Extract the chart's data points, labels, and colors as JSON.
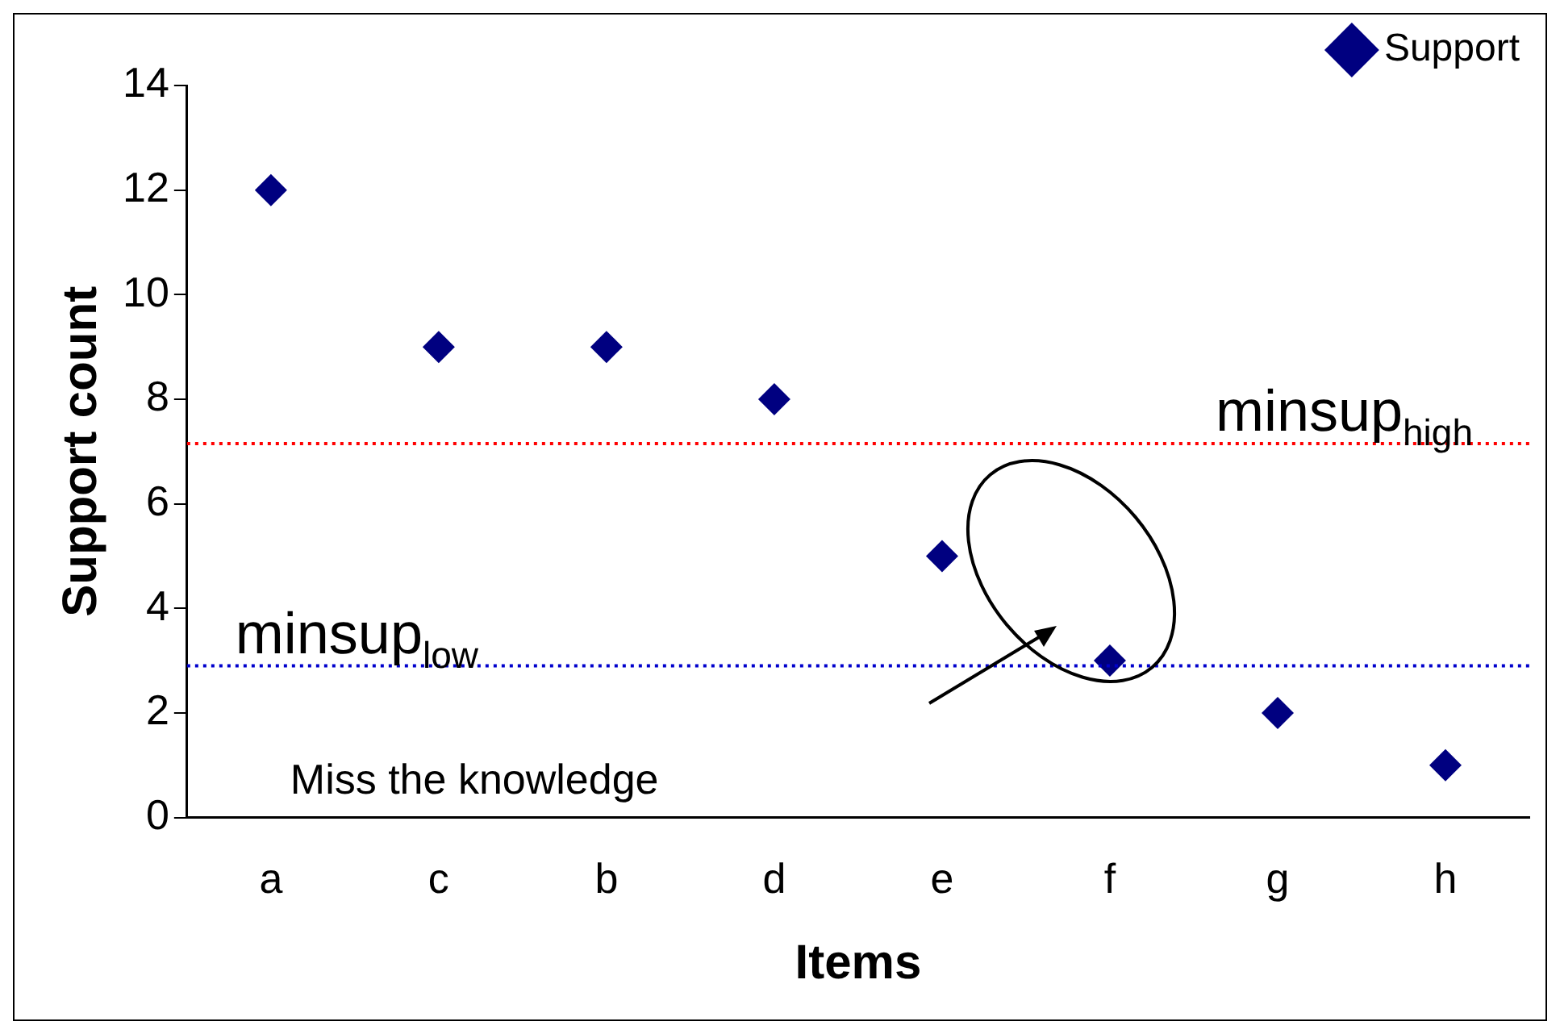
{
  "chart_data": {
    "type": "scatter",
    "xlabel": "Items",
    "ylabel": "Support count",
    "categories": [
      "a",
      "c",
      "b",
      "d",
      "e",
      "f",
      "g",
      "h"
    ],
    "series": [
      {
        "name": "Support",
        "color": "#000080",
        "values": [
          12,
          9,
          9,
          8,
          5,
          3,
          2,
          1
        ]
      }
    ],
    "ylim": [
      0,
      14
    ],
    "yticks": [
      0,
      2,
      4,
      6,
      8,
      10,
      12,
      14
    ],
    "grid": false,
    "legend": "top right",
    "marker": "diamond",
    "ref_lines": [
      {
        "axis": "y",
        "value": 7.15,
        "label": "minsup$_{high}$",
        "color": "#ff0000",
        "line_style": "dotted"
      },
      {
        "axis": "y",
        "value": 2.9,
        "label": "minsup$_{low}$",
        "color": "#0000cc",
        "line_style": "dotted"
      }
    ],
    "annotations": [
      "Miss the knowledge"
    ]
  }
}
